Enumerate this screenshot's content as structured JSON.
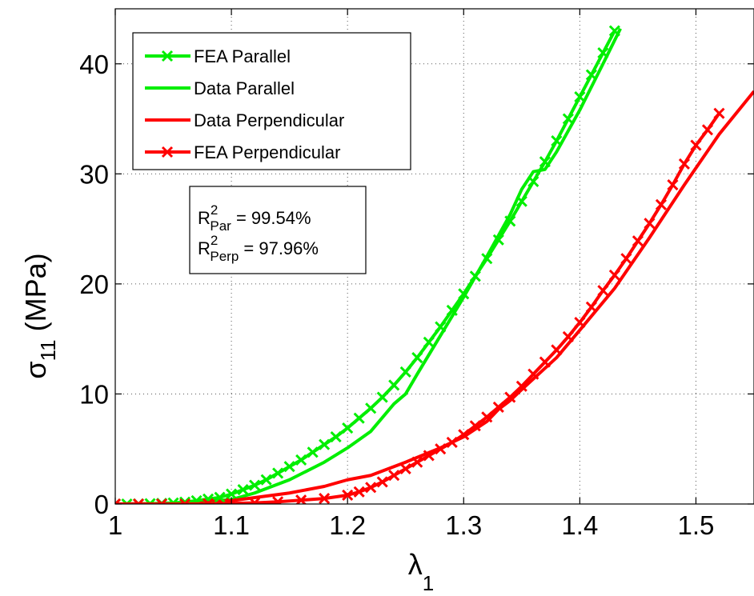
{
  "chart_data": {
    "type": "line",
    "xlabel": "λ",
    "xlabel_sub": "1",
    "ylabel": "σ",
    "ylabel_sub": "11",
    "ylabel_unit": " (MPa)",
    "xlim": [
      1,
      1.55
    ],
    "ylim": [
      0,
      45
    ],
    "xticks": [
      1,
      1.1,
      1.2,
      1.3,
      1.4,
      1.5
    ],
    "xtick_labels": [
      "1",
      "1.1",
      "1.2",
      "1.3",
      "1.4",
      "1.5"
    ],
    "yticks": [
      0,
      10,
      20,
      30,
      40
    ],
    "ytick_labels": [
      "0",
      "10",
      "20",
      "30",
      "40"
    ],
    "grid": true,
    "legend_position": "top-left",
    "series": [
      {
        "name": "FEA Parallel",
        "color": "#00ee00",
        "marker": "x",
        "x": [
          1.0,
          1.01,
          1.02,
          1.03,
          1.04,
          1.05,
          1.06,
          1.07,
          1.08,
          1.09,
          1.1,
          1.11,
          1.12,
          1.13,
          1.14,
          1.15,
          1.16,
          1.17,
          1.18,
          1.19,
          1.2,
          1.21,
          1.22,
          1.23,
          1.24,
          1.25,
          1.26,
          1.27,
          1.28,
          1.29,
          1.3,
          1.31,
          1.32,
          1.33,
          1.34,
          1.35,
          1.36,
          1.37,
          1.38,
          1.39,
          1.4,
          1.41,
          1.42,
          1.43
        ],
        "y": [
          0.0,
          0.0,
          0.01,
          0.03,
          0.06,
          0.1,
          0.17,
          0.3,
          0.45,
          0.6,
          0.9,
          1.3,
          1.7,
          2.2,
          2.8,
          3.4,
          4.0,
          4.7,
          5.4,
          6.1,
          6.9,
          7.8,
          8.7,
          9.7,
          10.8,
          12.0,
          13.3,
          14.7,
          16.1,
          17.6,
          19.1,
          20.7,
          22.3,
          24.0,
          25.7,
          27.5,
          29.3,
          31.1,
          33.0,
          35.0,
          37.0,
          39.0,
          41.0,
          43.0
        ]
      },
      {
        "name": "Data Parallel",
        "color": "#00ee00",
        "marker": "none",
        "x": [
          1.0,
          1.05,
          1.1,
          1.12,
          1.15,
          1.18,
          1.2,
          1.22,
          1.24,
          1.25,
          1.26,
          1.28,
          1.3,
          1.32,
          1.34,
          1.35,
          1.36,
          1.37,
          1.38,
          1.4,
          1.42,
          1.435
        ],
        "y": [
          0.0,
          0.05,
          0.4,
          1.0,
          2.2,
          3.8,
          5.1,
          6.6,
          9.1,
          10.0,
          11.8,
          15.3,
          18.8,
          22.5,
          26.3,
          28.6,
          30.2,
          30.4,
          32.0,
          35.8,
          40.0,
          43.2
        ]
      },
      {
        "name": "Data Perpendicular",
        "color": "#ff0000",
        "marker": "none",
        "x": [
          1.0,
          1.05,
          1.1,
          1.15,
          1.18,
          1.2,
          1.22,
          1.25,
          1.28,
          1.3,
          1.32,
          1.33,
          1.34,
          1.35,
          1.38,
          1.4,
          1.43,
          1.46,
          1.49,
          1.52,
          1.55
        ],
        "y": [
          0.0,
          0.05,
          0.3,
          1.0,
          1.6,
          2.2,
          2.6,
          3.8,
          5.1,
          6.1,
          7.5,
          8.6,
          9.4,
          10.4,
          13.3,
          15.8,
          19.6,
          24.2,
          29.0,
          33.6,
          37.5
        ]
      },
      {
        "name": "FEA Perpendicular",
        "color": "#ff0000",
        "marker": "x",
        "x": [
          1.0,
          1.02,
          1.04,
          1.06,
          1.08,
          1.1,
          1.12,
          1.14,
          1.16,
          1.18,
          1.2,
          1.21,
          1.22,
          1.23,
          1.24,
          1.25,
          1.26,
          1.27,
          1.28,
          1.29,
          1.3,
          1.31,
          1.32,
          1.33,
          1.34,
          1.35,
          1.36,
          1.37,
          1.38,
          1.39,
          1.4,
          1.41,
          1.42,
          1.43,
          1.44,
          1.45,
          1.46,
          1.47,
          1.48,
          1.49,
          1.5,
          1.51,
          1.52
        ],
        "y": [
          0.0,
          0.0,
          0.0,
          0.0,
          0.02,
          0.05,
          0.1,
          0.2,
          0.35,
          0.5,
          0.8,
          1.1,
          1.5,
          2.0,
          2.6,
          3.2,
          3.8,
          4.4,
          5.0,
          5.6,
          6.3,
          7.1,
          7.9,
          8.8,
          9.7,
          10.7,
          11.8,
          12.9,
          14.0,
          15.2,
          16.5,
          17.9,
          19.4,
          20.8,
          22.3,
          23.9,
          25.5,
          27.2,
          29.0,
          30.9,
          32.6,
          34.0,
          35.5
        ]
      }
    ],
    "legend_order": [
      "FEA Parallel",
      "Data Parallel",
      "Data Perpendicular",
      "FEA Perpendicular"
    ],
    "annotation": {
      "r_symbol": "R",
      "r_sup": "2",
      "line1_sub": "Par",
      "line1_value": " = 99.54%",
      "line2_sub": "Perp",
      "line2_value": " = 97.96%"
    }
  }
}
